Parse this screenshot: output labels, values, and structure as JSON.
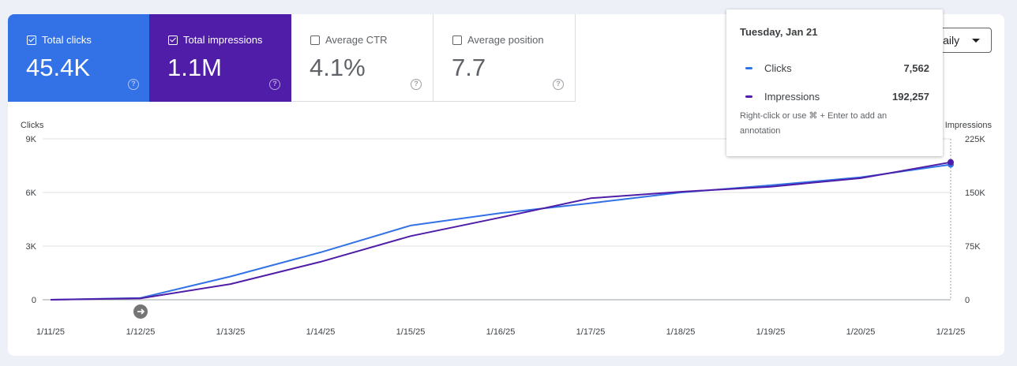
{
  "metrics": [
    {
      "label": "Total clicks",
      "value": "45.4K",
      "active": true,
      "color": "#3272e6"
    },
    {
      "label": "Total impressions",
      "value": "1.1M",
      "active": true,
      "color": "#4f1da8"
    },
    {
      "label": "Average CTR",
      "value": "4.1%",
      "active": false
    },
    {
      "label": "Average position",
      "value": "7.7",
      "active": false
    }
  ],
  "help_glyph": "?",
  "granularity": {
    "selected": "Daily"
  },
  "tooltip": {
    "date": "Tuesday, Jan 21",
    "rows": [
      {
        "label": "Clicks",
        "value": "7,562",
        "color": "#3272e6"
      },
      {
        "label": "Impressions",
        "value": "192,257",
        "color": "#4f1da8"
      }
    ],
    "note": "Right-click or use ⌘ + Enter to add an annotation"
  },
  "chart_data": {
    "type": "line",
    "x": [
      "1/11/25",
      "1/12/25",
      "1/13/25",
      "1/14/25",
      "1/15/25",
      "1/16/25",
      "1/17/25",
      "1/18/25",
      "1/19/25",
      "1/20/25",
      "1/21/25"
    ],
    "series": [
      {
        "name": "Clicks",
        "axis": "left",
        "color": "#3272e6",
        "values": [
          0,
          100,
          1300,
          2650,
          4150,
          4850,
          5400,
          6000,
          6400,
          6850,
          7562
        ]
      },
      {
        "name": "Impressions",
        "axis": "right",
        "color": "#4f1da8",
        "values": [
          0,
          2000,
          22000,
          53000,
          89000,
          115000,
          142000,
          151000,
          158000,
          170000,
          192257
        ]
      }
    ],
    "ylabel_left": "Clicks",
    "ylabel_right": "Impressions",
    "ylim_left": [
      0,
      9000
    ],
    "ylim_right": [
      0,
      225000
    ],
    "yticks_left": [
      "0",
      "3K",
      "6K",
      "9K"
    ],
    "yticks_right": [
      "0",
      "75K",
      "150K",
      "225K"
    ],
    "grid": true,
    "annotation_marker_at": "1/12/25",
    "hover_at": "1/21/25"
  }
}
